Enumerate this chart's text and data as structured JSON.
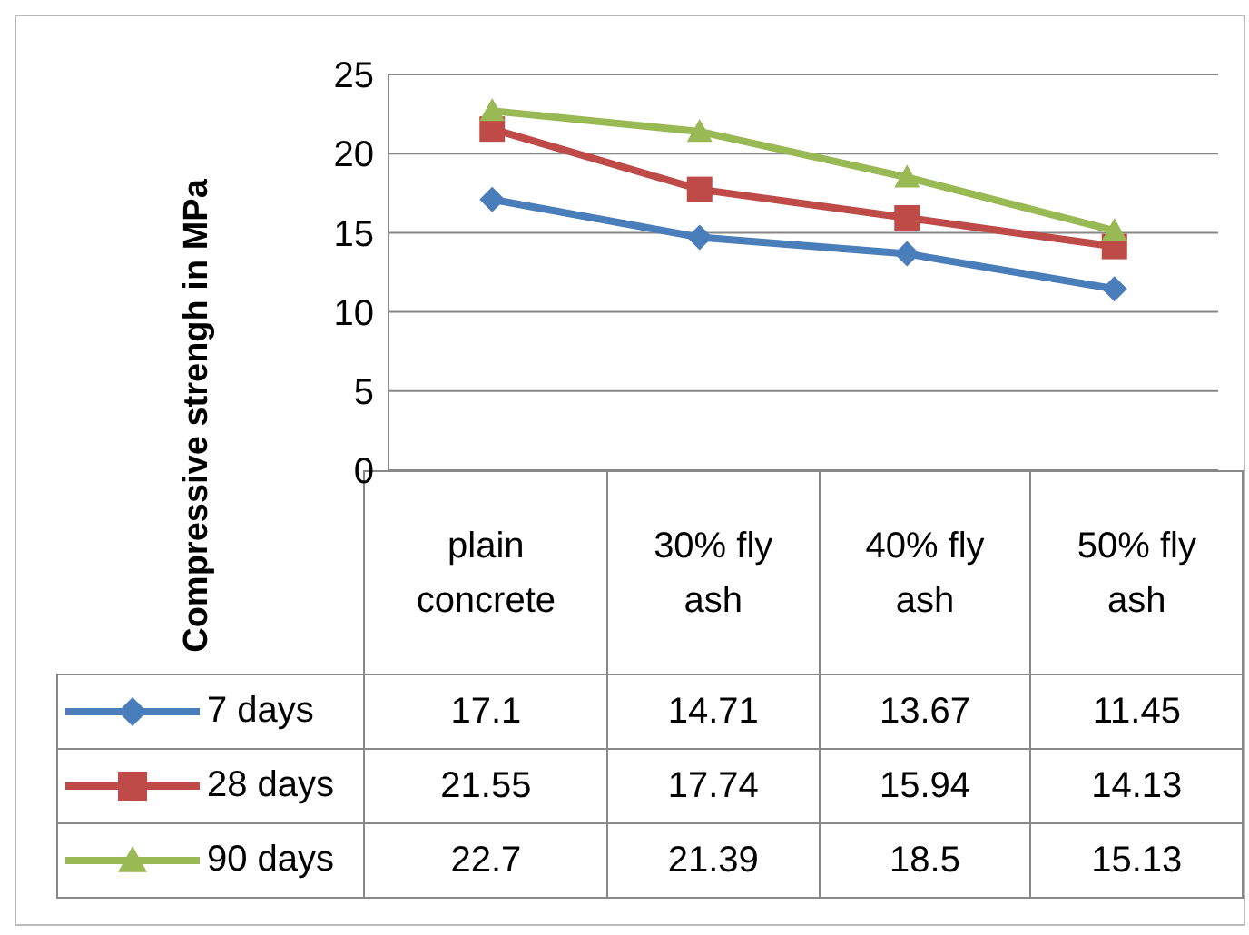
{
  "chart_data": {
    "type": "line",
    "ylabel": "Compressive strengh in MPa",
    "categories": [
      "plain concrete",
      "30% fly ash",
      "40% fly ash",
      "50% fly ash"
    ],
    "series": [
      {
        "name": "7 days",
        "color": "#4a7ebb",
        "marker": "diamond",
        "values": [
          17.1,
          14.71,
          13.67,
          11.45
        ]
      },
      {
        "name": "28 days",
        "color": "#be4b48",
        "marker": "square",
        "values": [
          21.55,
          17.74,
          15.94,
          14.13
        ]
      },
      {
        "name": "90 days",
        "color": "#98b954",
        "marker": "triangle",
        "values": [
          22.7,
          21.39,
          18.5,
          15.13
        ]
      }
    ],
    "ylim": [
      0,
      25
    ],
    "yticks": [
      0,
      5,
      10,
      15,
      20,
      25
    ],
    "grid": "y",
    "legend": "bottom",
    "data_labels": true
  }
}
